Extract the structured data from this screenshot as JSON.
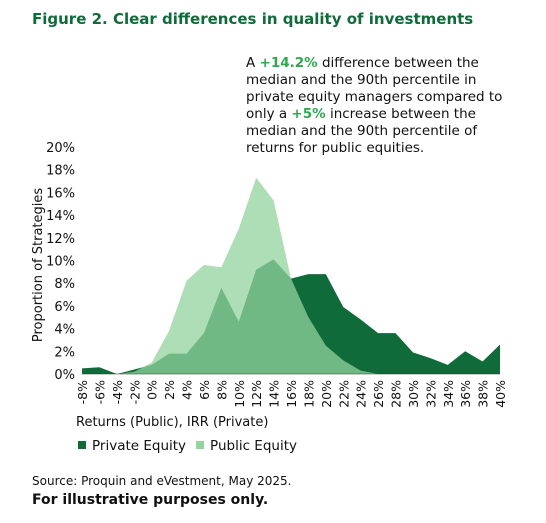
{
  "chart_data": {
    "type": "area",
    "title": "Figure 2. Clear differences in quality of investments",
    "annotation": [
      "A ",
      "+14.2%",
      " difference between the median and the 90th percentile in private equity managers compared to only a ",
      "+5%",
      " increase between the median and the 90th percentile of returns for public equities."
    ],
    "x_label": "Returns (Public), IRR (Private)",
    "y_label": "Proportion of Strategies",
    "categories": [
      "-8%",
      "-6%",
      "-4%",
      "-2%",
      "0%",
      "2%",
      "4%",
      "6%",
      "8%",
      "10%",
      "12%",
      "14%",
      "16%",
      "18%",
      "20%",
      "22%",
      "24%",
      "26%",
      "28%",
      "30%",
      "32%",
      "34%",
      "36%",
      "38%",
      "40%"
    ],
    "series": [
      {
        "name": "Private Equity",
        "color": "#0f6b3a",
        "values": [
          0.5,
          0.6,
          0,
          0.4,
          0.8,
          1.8,
          1.8,
          3.6,
          7.6,
          4.6,
          9.2,
          10.1,
          8.4,
          8.8,
          8.8,
          5.9,
          4.8,
          3.6,
          3.6,
          1.9,
          1.4,
          0.8,
          2,
          1.1,
          2.6
        ]
      },
      {
        "name": "Public Equity",
        "color": "#93d39e",
        "values": [
          0,
          0,
          0,
          0.2,
          1,
          3.8,
          8.2,
          9.6,
          9.4,
          12.8,
          17.3,
          15.3,
          8.4,
          5,
          2.5,
          1.2,
          0.3,
          0,
          0,
          0,
          0,
          0,
          0,
          0,
          0
        ]
      }
    ],
    "ylim": [
      0,
      20
    ],
    "yticks": [
      {
        "value": 0,
        "label": "0%"
      },
      {
        "value": 2,
        "label": "2%"
      },
      {
        "value": 4,
        "label": "4%"
      },
      {
        "value": 6,
        "label": "6%"
      },
      {
        "value": 8,
        "label": "8%"
      },
      {
        "value": 10,
        "label": "10%"
      },
      {
        "value": 12,
        "label": "12%"
      },
      {
        "value": 14,
        "label": "14%"
      },
      {
        "value": 16,
        "label": "16%"
      },
      {
        "value": 18,
        "label": "18%"
      },
      {
        "value": 20,
        "label": "20%"
      }
    ],
    "source": "Source:  Proquin and eVestment, May 2025.",
    "footnote": "For illustrative purposes only."
  }
}
